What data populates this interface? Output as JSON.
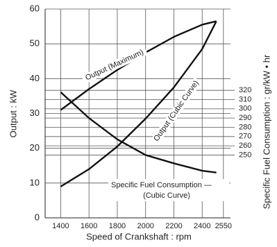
{
  "chart_data": {
    "type": "line",
    "x_label": "Speed of Crankshaft : rpm",
    "y_label": "Output : kW",
    "y2_label": "Specific Fuel Consumption : gr/kW • hr",
    "x": [
      1400,
      1600,
      1800,
      2000,
      2200,
      2400,
      2500
    ],
    "series": [
      {
        "name": "Output (Maximum)",
        "color": "#111111",
        "values": [
          31,
          37,
          42.5,
          47.5,
          52,
          55.5,
          56.5
        ]
      },
      {
        "name": "Output (Cubic Curve)",
        "color": "#111111",
        "values": [
          9,
          14,
          20.5,
          28.5,
          37.5,
          48.5,
          56.5
        ]
      },
      {
        "name": "Specific Fuel Consumption",
        "color": "#111111",
        "axis": "y2",
        "values": [
          318,
          290,
          267,
          250,
          241,
          233,
          231
        ]
      }
    ],
    "annotations": [
      "Specific Fuel Consumption —",
      "(Cubic Curve)"
    ],
    "xlim": [
      1290,
      2600
    ],
    "xticks": [
      1400,
      1600,
      1800,
      2000,
      2200,
      2400,
      2550
    ],
    "ylim": [
      0,
      60
    ],
    "yticks": [
      0,
      10,
      20,
      30,
      40,
      50,
      60
    ],
    "y2lim": [
      182,
      408
    ],
    "y2ticks": [
      250,
      260,
      270,
      280,
      290,
      300,
      310,
      320
    ],
    "grid": true
  }
}
